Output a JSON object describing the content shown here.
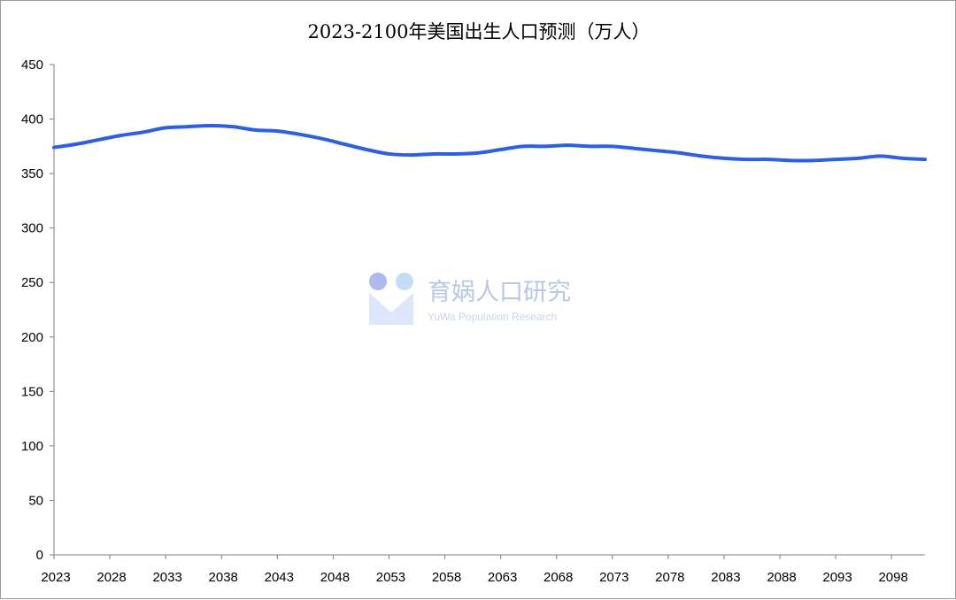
{
  "chart_data": {
    "type": "line",
    "title": "2023-2100年美国出生人口预测（万人）",
    "xlabel": "",
    "ylabel": "",
    "x_range": [
      2023,
      2101
    ],
    "ylim": [
      0,
      450
    ],
    "y_ticks": [
      "0",
      "50",
      "100",
      "150",
      "200",
      "250",
      "300",
      "350",
      "400",
      "450"
    ],
    "x_tick_labels": [
      "2023",
      "2028",
      "2033",
      "2038",
      "2043",
      "2048",
      "2053",
      "2058",
      "2063",
      "2068",
      "2073",
      "2078",
      "2083",
      "2088",
      "2093",
      "2098"
    ],
    "grid": false,
    "legend": "none",
    "series": [
      {
        "color": "#2f5fe0",
        "x": [
          2023,
          2025,
          2027,
          2029,
          2031,
          2033,
          2035,
          2037,
          2039,
          2041,
          2043,
          2045,
          2047,
          2049,
          2051,
          2053,
          2055,
          2057,
          2059,
          2061,
          2063,
          2065,
          2067,
          2069,
          2071,
          2073,
          2075,
          2077,
          2079,
          2081,
          2083,
          2085,
          2087,
          2089,
          2091,
          2093,
          2095,
          2097,
          2099,
          2101
        ],
        "values": [
          374,
          377,
          381,
          385,
          388,
          392,
          393,
          394,
          393,
          390,
          389,
          386,
          382,
          377,
          372,
          368,
          367,
          368,
          368,
          369,
          372,
          375,
          375,
          376,
          375,
          375,
          373,
          371,
          369,
          366,
          364,
          363,
          363,
          362,
          362,
          363,
          364,
          366,
          364,
          363
        ]
      }
    ]
  },
  "watermark": {
    "name": "育娲人口研究",
    "subtitle": "YuWa Population Research",
    "colors": {
      "dot_left": "#aeb9ee",
      "dot_right": "#c6dcf6",
      "mark": "#dde6fa"
    }
  }
}
